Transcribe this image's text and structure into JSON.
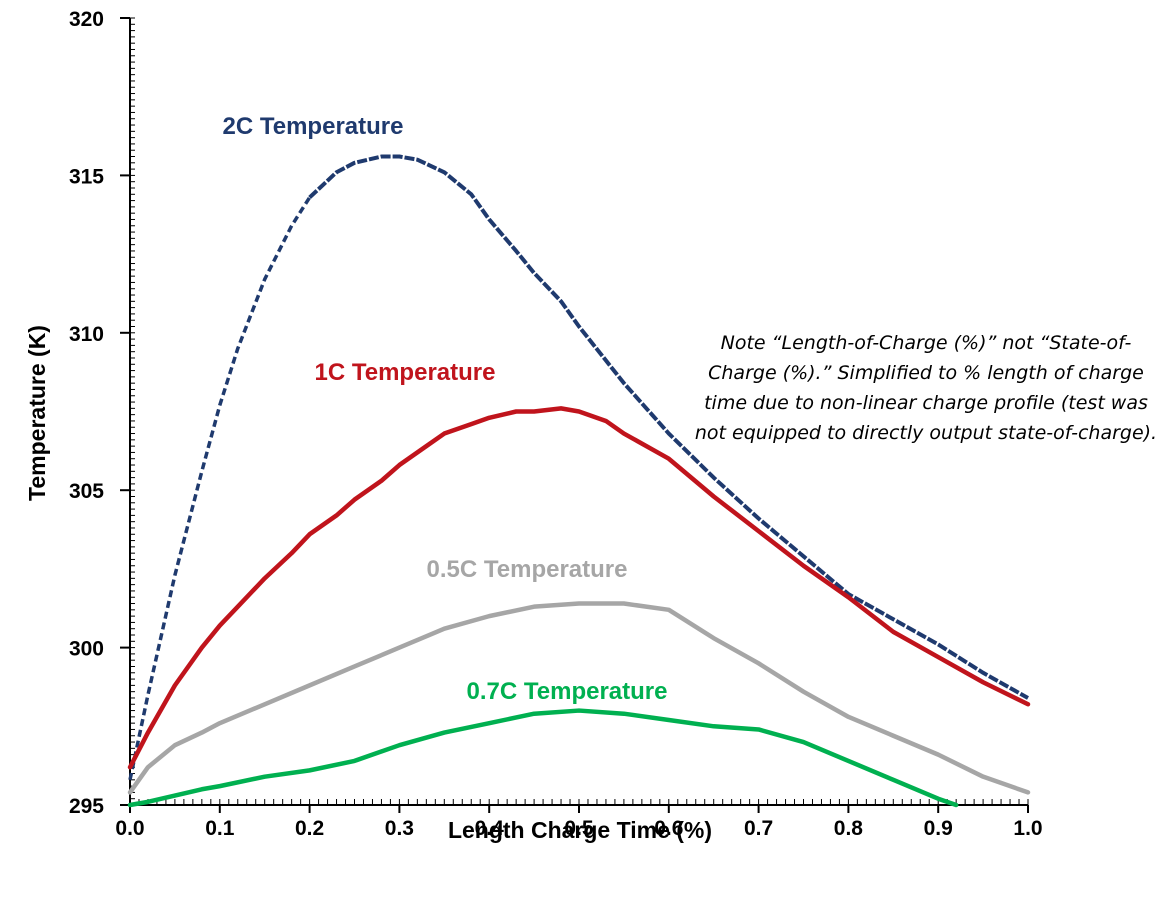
{
  "chart_data": {
    "type": "line",
    "title": "",
    "xlabel": "Length Charge Time (%)",
    "ylabel": "Temperature (K)",
    "xlim": [
      0.0,
      1.0
    ],
    "ylim": [
      295,
      320
    ],
    "x_ticks": [
      "0.0",
      "0.1",
      "0.2",
      "0.3",
      "0.4",
      "0.5",
      "0.6",
      "0.7",
      "0.8",
      "0.9",
      "1.0"
    ],
    "y_ticks": [
      "295",
      "300",
      "305",
      "310",
      "315",
      "320"
    ],
    "grid": false,
    "legend": "none",
    "series": [
      {
        "name": "2C Temperature",
        "color": "#1f3a6e",
        "style": "dashed-then-solid",
        "x": [
          0.0,
          0.02,
          0.05,
          0.08,
          0.1,
          0.12,
          0.15,
          0.18,
          0.2,
          0.23,
          0.25,
          0.28,
          0.3,
          0.32,
          0.35,
          0.38,
          0.4,
          0.43,
          0.45,
          0.48,
          0.5,
          0.55,
          0.6,
          0.65,
          0.7,
          0.75,
          0.8,
          0.85,
          0.9,
          0.95,
          1.0
        ],
        "y": [
          295.8,
          298.5,
          302.3,
          305.6,
          307.7,
          309.5,
          311.7,
          313.4,
          314.3,
          315.1,
          315.4,
          315.6,
          315.6,
          315.5,
          315.1,
          314.4,
          313.6,
          312.6,
          311.9,
          311.0,
          310.2,
          308.4,
          306.8,
          305.4,
          304.1,
          302.9,
          301.7,
          300.9,
          300.1,
          299.2,
          298.4
        ]
      },
      {
        "name": "1C Temperature",
        "color": "#c0141c",
        "x": [
          0.0,
          0.02,
          0.05,
          0.08,
          0.1,
          0.12,
          0.15,
          0.18,
          0.2,
          0.23,
          0.25,
          0.28,
          0.3,
          0.33,
          0.35,
          0.38,
          0.4,
          0.43,
          0.45,
          0.48,
          0.5,
          0.53,
          0.55,
          0.6,
          0.65,
          0.7,
          0.75,
          0.8,
          0.85,
          0.9,
          0.95,
          1.0
        ],
        "y": [
          296.2,
          297.3,
          298.8,
          300.0,
          300.7,
          301.3,
          302.2,
          303.0,
          303.6,
          304.2,
          304.7,
          305.3,
          305.8,
          306.4,
          306.8,
          307.1,
          307.3,
          307.5,
          307.5,
          307.6,
          307.5,
          307.2,
          306.8,
          306.0,
          304.8,
          303.7,
          302.6,
          301.6,
          300.5,
          299.7,
          298.9,
          298.2
        ]
      },
      {
        "name": "0.5C Temperature",
        "color": "#a6a6a6",
        "x": [
          0.0,
          0.02,
          0.05,
          0.08,
          0.1,
          0.15,
          0.2,
          0.25,
          0.3,
          0.35,
          0.4,
          0.45,
          0.5,
          0.55,
          0.6,
          0.65,
          0.7,
          0.75,
          0.8,
          0.85,
          0.9,
          0.95,
          1.0
        ],
        "y": [
          295.4,
          296.2,
          296.9,
          297.3,
          297.6,
          298.2,
          298.8,
          299.4,
          300.0,
          300.6,
          301.0,
          301.3,
          301.4,
          301.4,
          301.2,
          300.3,
          299.5,
          298.6,
          297.8,
          297.2,
          296.6,
          295.9,
          295.4
        ]
      },
      {
        "name": "0.7C Temperature",
        "color": "#00b050",
        "x": [
          0.0,
          0.02,
          0.05,
          0.08,
          0.1,
          0.15,
          0.2,
          0.25,
          0.3,
          0.35,
          0.4,
          0.45,
          0.5,
          0.55,
          0.6,
          0.65,
          0.7,
          0.75,
          0.8,
          0.85,
          0.9,
          0.92
        ],
        "y": [
          295.0,
          295.1,
          295.3,
          295.5,
          295.6,
          295.9,
          296.1,
          296.4,
          296.9,
          297.3,
          297.6,
          297.9,
          298.0,
          297.9,
          297.7,
          297.5,
          297.4,
          297.0,
          296.4,
          295.8,
          295.2,
          295.0
        ]
      }
    ],
    "series_labels": [
      "2C Temperature",
      "1C Temperature",
      "0.5C Temperature",
      "0.7C Temperature"
    ]
  },
  "note": "Note “Length-of-Charge (%)” not “State-of-Charge (%).” Simplified to % length of charge time due to non-linear charge profile (test was not equipped to directly output state-of-charge)."
}
